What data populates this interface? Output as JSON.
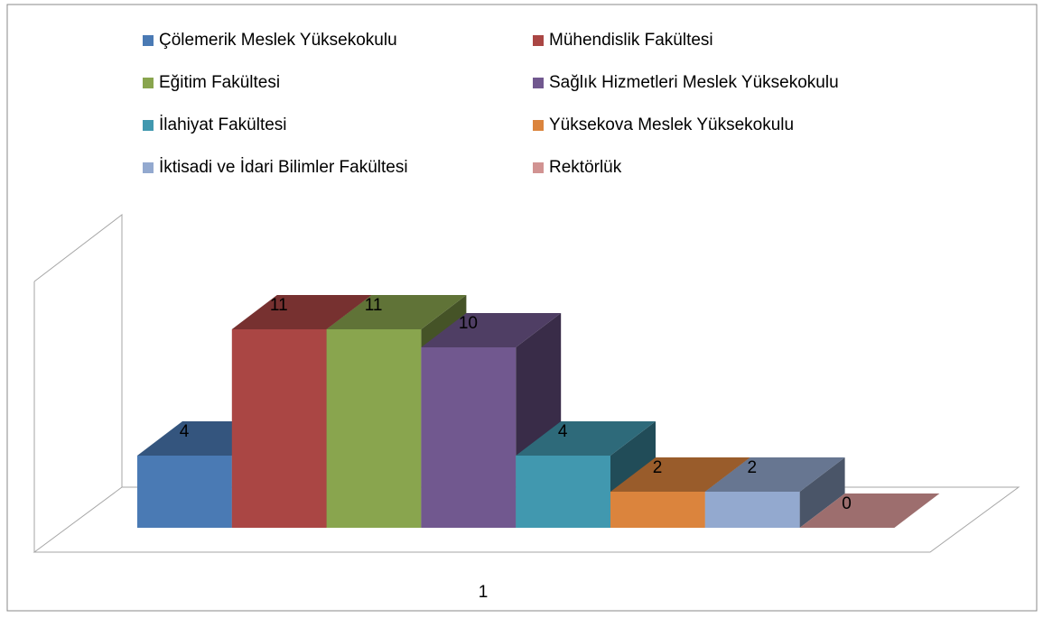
{
  "chart_data": {
    "type": "bar3d",
    "categories": [
      "1"
    ],
    "series": [
      {
        "name": "Çölemerik Meslek Yüksekokulu",
        "color": "#4a7ab4",
        "values": [
          4
        ]
      },
      {
        "name": "Mühendislik Fakültesi",
        "color": "#aa4644",
        "values": [
          11
        ]
      },
      {
        "name": "Eğitim Fakültesi",
        "color": "#89a54e",
        "values": [
          11
        ]
      },
      {
        "name": "Sağlık Hizmetleri Meslek Yüksekokulu",
        "color": "#71588f",
        "values": [
          10
        ]
      },
      {
        "name": "İlahiyat Fakültesi",
        "color": "#4198af",
        "values": [
          4
        ]
      },
      {
        "name": "Yüksekova Meslek Yüksekokulu",
        "color": "#db843d",
        "values": [
          2
        ]
      },
      {
        "name": "İktisadi ve İdari Bilimler Fakültesi",
        "color": "#93a9cf",
        "values": [
          2
        ]
      },
      {
        "name": "Rektörlük",
        "color": "#d19392",
        "values": [
          0
        ]
      }
    ]
  }
}
